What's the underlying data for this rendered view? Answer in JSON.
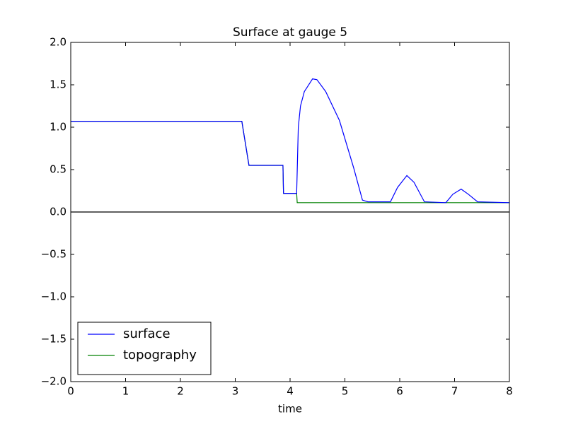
{
  "chart_data": {
    "type": "line",
    "title": "Surface at gauge 5",
    "xlabel": "time",
    "xlim": [
      0,
      8
    ],
    "ylim": [
      -2,
      2
    ],
    "xticks": [
      0,
      1,
      2,
      3,
      4,
      5,
      6,
      7,
      8
    ],
    "yticks": [
      {
        "value": -2,
        "label": "−2.0"
      },
      {
        "value": -1.5,
        "label": "−1.5"
      },
      {
        "value": -1,
        "label": "−1.0"
      },
      {
        "value": -0.5,
        "label": "−0.5"
      },
      {
        "value": 0,
        "label": "0.0"
      },
      {
        "value": 0.5,
        "label": "0.5"
      },
      {
        "value": 1,
        "label": "1.0"
      },
      {
        "value": 1.5,
        "label": "1.5"
      },
      {
        "value": 2,
        "label": "2.0"
      }
    ],
    "zero_line": true,
    "legend": "lower left",
    "series": [
      {
        "name": "surface",
        "color": "#0000ff",
        "x": [
          0,
          3.12,
          3.25,
          3.87,
          3.88,
          4.12,
          4.15,
          4.19,
          4.26,
          4.32,
          4.41,
          4.49,
          4.65,
          4.9,
          5.16,
          5.32,
          5.42,
          5.83,
          5.96,
          6.13,
          6.26,
          6.45,
          6.84,
          6.97,
          7.12,
          7.25,
          7.42,
          8
        ],
        "values": [
          1.07,
          1.07,
          0.55,
          0.55,
          0.22,
          0.22,
          1.0,
          1.25,
          1.42,
          1.48,
          1.57,
          1.56,
          1.42,
          1.08,
          0.52,
          0.14,
          0.12,
          0.12,
          0.29,
          0.43,
          0.35,
          0.12,
          0.11,
          0.21,
          0.27,
          0.21,
          0.12,
          0.11
        ]
      },
      {
        "name": "topography",
        "color": "#008000",
        "x": [
          0,
          3.12,
          3.25,
          3.87,
          3.88,
          4.12,
          4.13,
          8
        ],
        "values": [
          1.07,
          1.07,
          0.55,
          0.55,
          0.22,
          0.22,
          0.11,
          0.11
        ]
      }
    ]
  }
}
